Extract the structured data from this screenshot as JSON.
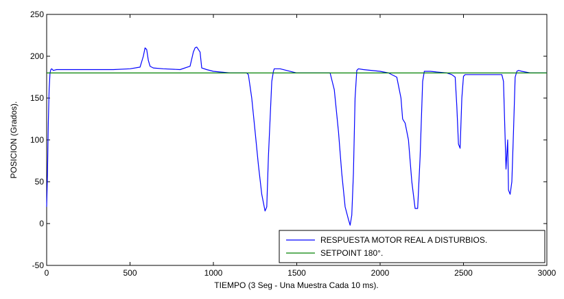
{
  "chart_data": {
    "type": "line",
    "title": "",
    "xlabel": "TIEMPO (3 Seg - Una Muestra Cada 10 ms).",
    "ylabel": "POSICION (Grados).",
    "xlim": [
      0,
      3000
    ],
    "ylim": [
      -50,
      250
    ],
    "xticks": [
      0,
      500,
      1000,
      1500,
      2000,
      2500,
      3000
    ],
    "yticks": [
      -50,
      0,
      50,
      100,
      150,
      200,
      250
    ],
    "grid": false,
    "legend_position": "bottom-right",
    "series": [
      {
        "name": "RESPUESTA MOTOR REAL A DISTURBIOS.",
        "color": "#0000ff",
        "x": [
          0,
          5,
          10,
          15,
          20,
          25,
          30,
          40,
          60,
          100,
          200,
          300,
          400,
          500,
          560,
          580,
          590,
          600,
          610,
          620,
          640,
          700,
          800,
          860,
          880,
          890,
          900,
          920,
          930,
          960,
          1000,
          1100,
          1200,
          1210,
          1230,
          1250,
          1270,
          1290,
          1310,
          1320,
          1330,
          1350,
          1360,
          1365,
          1375,
          1400,
          1500,
          1600,
          1700,
          1725,
          1750,
          1770,
          1790,
          1810,
          1820,
          1830,
          1840,
          1850,
          1860,
          1870,
          1900,
          2000,
          2050,
          2100,
          2125,
          2135,
          2150,
          2170,
          2190,
          2210,
          2225,
          2240,
          2255,
          2265,
          2275,
          2300,
          2400,
          2430,
          2450,
          2460,
          2470,
          2480,
          2490,
          2500,
          2510,
          2550,
          2650,
          2730,
          2740,
          2755,
          2765,
          2770,
          2780,
          2790,
          2800,
          2810,
          2820,
          2830,
          2850,
          2900,
          2950,
          3000
        ],
        "y": [
          20,
          60,
          120,
          160,
          180,
          184,
          185,
          183,
          184,
          184,
          184,
          184,
          184,
          185,
          187,
          200,
          210,
          208,
          195,
          188,
          186,
          185,
          184,
          188,
          205,
          210,
          211,
          205,
          186,
          184,
          182,
          180,
          180,
          178,
          150,
          110,
          70,
          35,
          15,
          20,
          80,
          170,
          182,
          185,
          185,
          185,
          180,
          180,
          180,
          160,
          110,
          60,
          20,
          5,
          -2,
          10,
          60,
          150,
          183,
          185,
          184,
          182,
          180,
          175,
          150,
          125,
          120,
          100,
          50,
          18,
          18,
          80,
          170,
          182,
          182,
          182,
          180,
          178,
          175,
          140,
          95,
          90,
          150,
          176,
          178,
          178,
          178,
          178,
          170,
          65,
          100,
          40,
          35,
          50,
          110,
          175,
          182,
          183,
          182,
          180,
          180,
          180
        ]
      },
      {
        "name": "SETPOINT 180°.",
        "color": "#008000",
        "x": [
          0,
          3000
        ],
        "y": [
          180,
          180
        ]
      }
    ]
  }
}
